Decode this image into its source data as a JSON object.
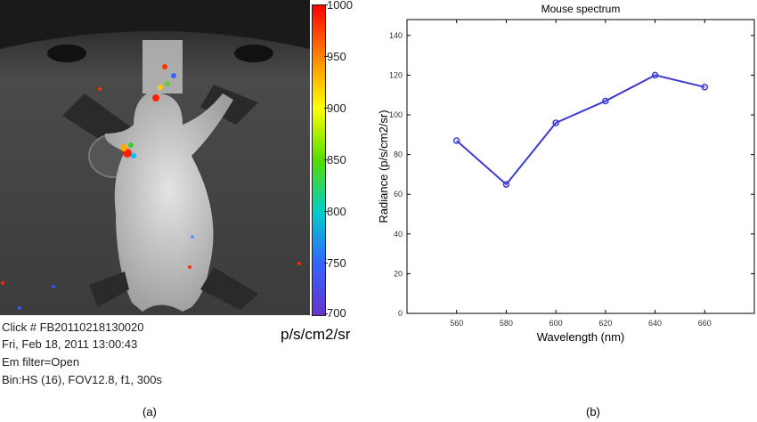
{
  "panel_a": {
    "colorbar": {
      "ticks": [
        "1000",
        "950",
        "900",
        "850",
        "800",
        "750",
        "700"
      ],
      "unit": "p/s/cm2/sr"
    },
    "meta": {
      "line1": "Click # FB20110218130020",
      "line2": "Fri, Feb 18, 2011 13:00:43",
      "line3": "Em filter=Open",
      "line4": "Bin:HS (16), FOV12.8, f1, 300s"
    },
    "label": "(a)"
  },
  "panel_b": {
    "label": "(b)"
  },
  "chart_data": {
    "type": "line",
    "title": "Mouse spectrum",
    "xlabel": "Wavelength (nm)",
    "ylabel": "Radiance (p/s/cm2/sr)",
    "x": [
      560,
      580,
      600,
      620,
      640,
      660
    ],
    "xticks": [
      "560",
      "580",
      "600",
      "620",
      "640",
      "660"
    ],
    "yticks": [
      "0",
      "20",
      "40",
      "60",
      "80",
      "100",
      "120",
      "140"
    ],
    "xlim": [
      540,
      680
    ],
    "ylim": [
      0,
      148
    ],
    "series": [
      {
        "values": [
          87,
          65,
          96,
          107,
          120,
          114
        ],
        "color": "#3b3bd1"
      }
    ]
  }
}
